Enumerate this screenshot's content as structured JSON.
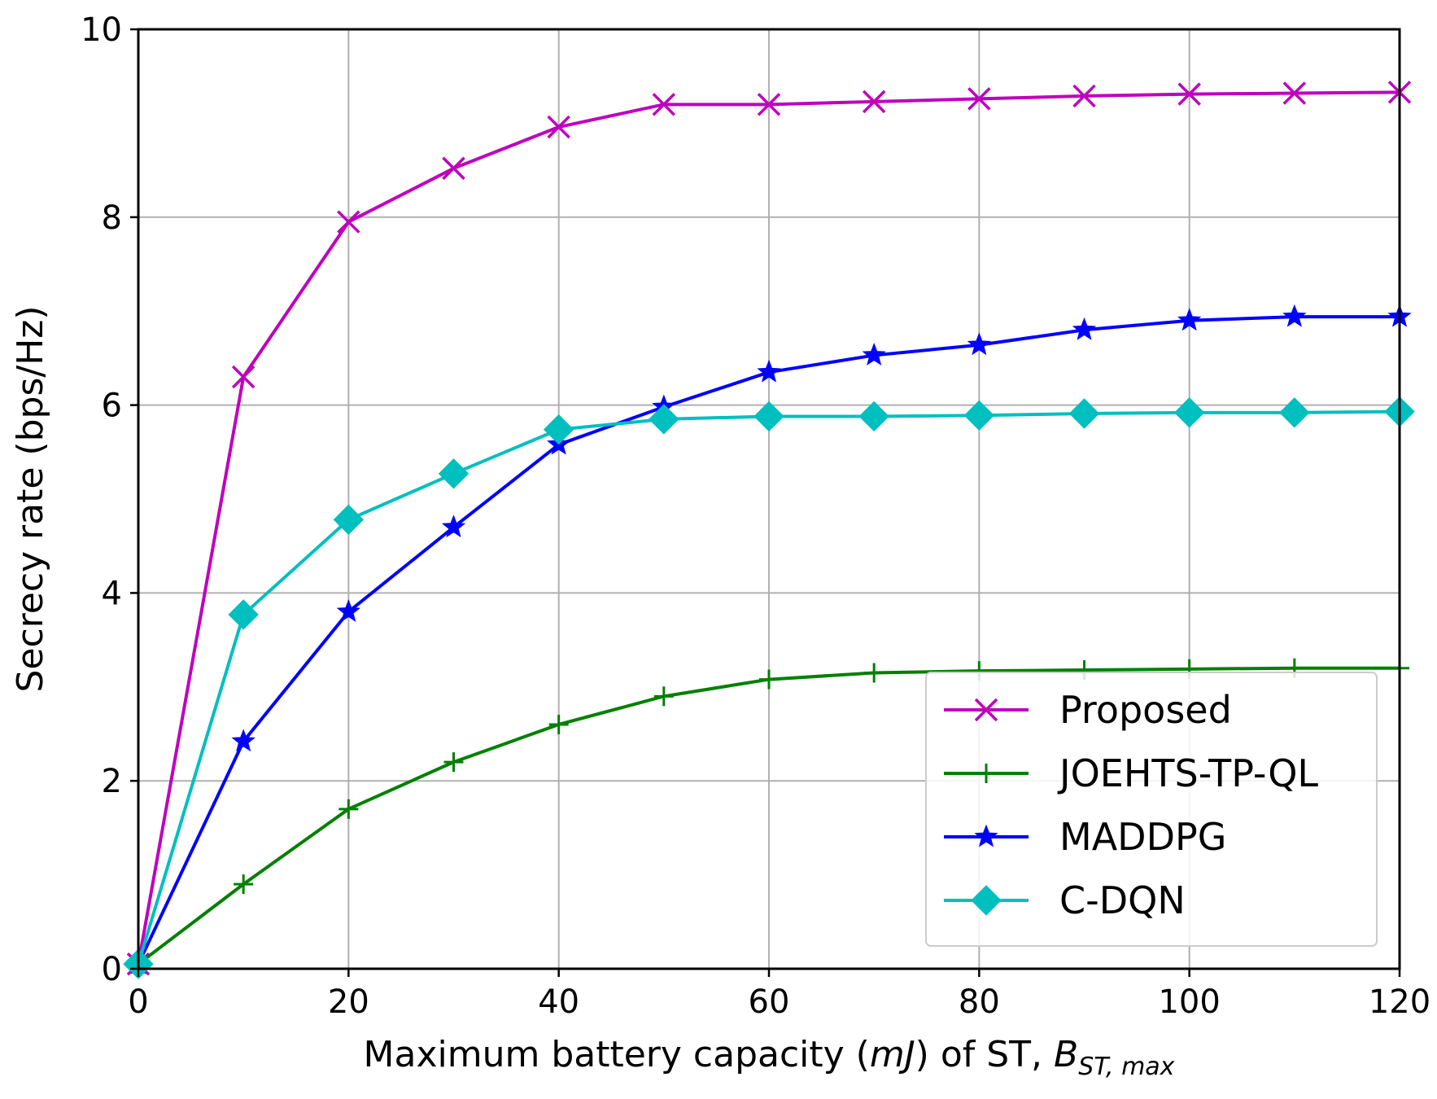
{
  "chart_data": {
    "type": "line",
    "title": "",
    "xlabel_parts": {
      "prefix": "Maximum battery capacity (",
      "unit": "mJ",
      "middle": ") of ST, ",
      "symbol": "B",
      "subscript": "ST, max"
    },
    "ylabel": "Secrecy rate (bps/Hz)",
    "xlim": [
      0,
      120
    ],
    "ylim": [
      0,
      10
    ],
    "xticks": [
      0,
      20,
      40,
      60,
      80,
      100,
      120
    ],
    "yticks": [
      0,
      2,
      4,
      6,
      8,
      10
    ],
    "grid": true,
    "legend_position": "lower-right",
    "x": [
      0,
      10,
      20,
      30,
      40,
      50,
      60,
      70,
      80,
      90,
      100,
      110,
      120
    ],
    "series": [
      {
        "name": "Proposed",
        "color": "#bf00bf",
        "marker": "x",
        "values": [
          0.05,
          6.3,
          7.95,
          8.52,
          8.96,
          9.2,
          9.2,
          9.23,
          9.26,
          9.29,
          9.31,
          9.32,
          9.33
        ]
      },
      {
        "name": "JOEHTS-TP-QL",
        "color": "#008000",
        "marker": "plus",
        "values": [
          0.05,
          0.9,
          1.7,
          2.2,
          2.6,
          2.9,
          3.08,
          3.15,
          3.17,
          3.18,
          3.19,
          3.2,
          3.2
        ]
      },
      {
        "name": "MADDPG",
        "color": "#0000ff",
        "marker": "star",
        "values": [
          0.05,
          2.42,
          3.8,
          4.7,
          5.58,
          5.98,
          6.35,
          6.53,
          6.64,
          6.8,
          6.9,
          6.94,
          6.94
        ]
      },
      {
        "name": "C-DQN",
        "color": "#00bfbf",
        "marker": "diamond",
        "values": [
          0.05,
          3.77,
          4.78,
          5.27,
          5.74,
          5.85,
          5.88,
          5.88,
          5.89,
          5.91,
          5.92,
          5.92,
          5.93
        ]
      }
    ]
  }
}
